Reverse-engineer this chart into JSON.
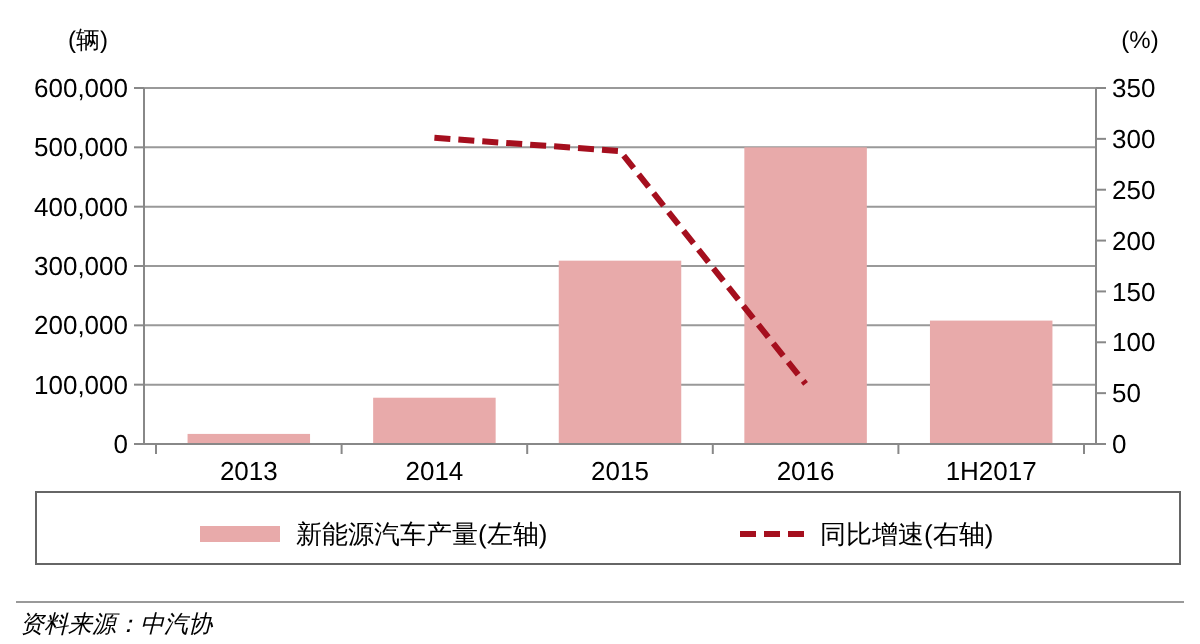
{
  "chart_data": {
    "type": "bar",
    "categories": [
      "2013",
      "2014",
      "2015",
      "2016",
      "1H2017"
    ],
    "ylabel": "(辆)",
    "y2label": "(%)",
    "series": [
      {
        "name": "新能源汽车产量(左轴)",
        "color": "#e8aaaa",
        "values": [
          17000,
          78000,
          309000,
          500000,
          208000
        ]
      },
      {
        "name": "同比增速(右轴)",
        "type": "line",
        "axis": "y2",
        "color": "#a50f1e",
        "line_style": "dashed",
        "values": [
          null,
          301,
          288,
          59,
          null
        ]
      }
    ],
    "ylim": [
      0,
      600000
    ],
    "yticks": [
      {
        "value": 0,
        "label": "0"
      },
      {
        "value": 100000,
        "label": "100,000"
      },
      {
        "value": 200000,
        "label": "200,000"
      },
      {
        "value": 300000,
        "label": "300,000"
      },
      {
        "value": 400000,
        "label": "400,000"
      },
      {
        "value": 500000,
        "label": "500,000"
      },
      {
        "value": 600000,
        "label": "600,000"
      }
    ],
    "y2lim": [
      0,
      350
    ],
    "y2ticks": [
      0,
      50,
      100,
      150,
      200,
      250,
      300,
      350
    ],
    "grid": "y",
    "legend": "bottom",
    "annotations": [
      "资料来源：中汽协"
    ]
  }
}
